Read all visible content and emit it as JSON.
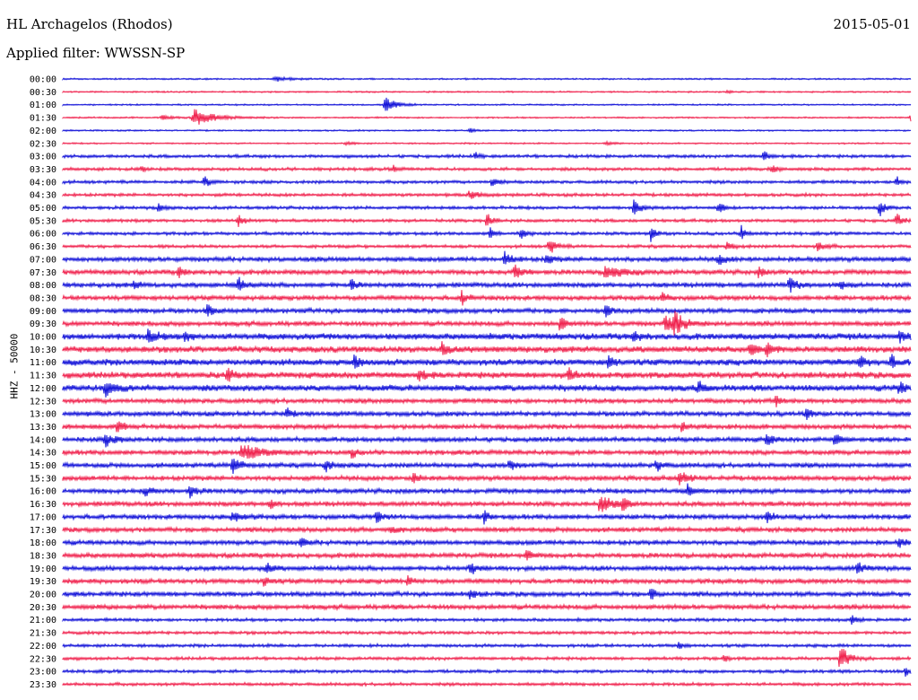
{
  "header": {
    "station": "HL Archagelos (Rhodos)",
    "date": "2015-05-01",
    "filter": "Applied filter: WWSSN-SP",
    "channel": "HHZ - 50000"
  },
  "colors": {
    "even_trace": "#1010d8",
    "odd_trace": "#f0204c"
  },
  "chart_data": {
    "type": "line",
    "title": "HL Archagelos (Rhodos)",
    "subtitle": "Applied filter: WWSSN-SP",
    "ylabel": "HHZ - 50000",
    "xlabel": "",
    "grid": false,
    "row_labels": [
      "00:00",
      "00:30",
      "01:00",
      "01:30",
      "02:00",
      "02:30",
      "03:00",
      "03:30",
      "04:00",
      "04:30",
      "05:00",
      "05:30",
      "06:00",
      "06:30",
      "07:00",
      "07:30",
      "08:00",
      "08:30",
      "09:00",
      "09:30",
      "10:00",
      "10:30",
      "11:00",
      "11:30",
      "12:00",
      "12:30",
      "13:00",
      "13:30",
      "14:00",
      "14:30",
      "15:00",
      "15:30",
      "16:00",
      "16:30",
      "17:00",
      "17:30",
      "18:00",
      "18:30",
      "19:00",
      "19:30",
      "20:00",
      "20:30",
      "21:00",
      "21:30",
      "22:00",
      "22:30",
      "23:00",
      "23:30"
    ],
    "row_duration_minutes": 30,
    "noise_levels": [
      1,
      1,
      1,
      1,
      1,
      1,
      2,
      2,
      2,
      2,
      2,
      2,
      2,
      2,
      3,
      3,
      3,
      3,
      3,
      3,
      4,
      4,
      4,
      4,
      4,
      3,
      3,
      3,
      3,
      3,
      3,
      3,
      3,
      3,
      3,
      3,
      3,
      3,
      3,
      3,
      3,
      3,
      2,
      2,
      2,
      2,
      2,
      2
    ],
    "events": [
      {
        "row": 0,
        "minute": 7.5,
        "amp": 3,
        "dur": 0.8
      },
      {
        "row": 1,
        "minute": 23.5,
        "amp": 2,
        "dur": 0.2
      },
      {
        "row": 2,
        "minute": 11.4,
        "amp": 9,
        "dur": 0.6
      },
      {
        "row": 3,
        "minute": 3.5,
        "amp": 3,
        "dur": 0.6
      },
      {
        "row": 3,
        "minute": 4.6,
        "amp": 10,
        "dur": 1.2
      },
      {
        "row": 3,
        "minute": 30,
        "amp": 8,
        "dur": 0.4
      },
      {
        "row": 4,
        "minute": 14.4,
        "amp": 3,
        "dur": 0.3
      },
      {
        "row": 5,
        "minute": 10,
        "amp": 2,
        "dur": 0.4
      },
      {
        "row": 5,
        "minute": 19.2,
        "amp": 2,
        "dur": 0.4
      },
      {
        "row": 6,
        "minute": 14.6,
        "amp": 5,
        "dur": 0.2
      },
      {
        "row": 6,
        "minute": 24.8,
        "amp": 6,
        "dur": 0.3
      },
      {
        "row": 7,
        "minute": 2.8,
        "amp": 4,
        "dur": 0.2
      },
      {
        "row": 7,
        "minute": 11.7,
        "amp": 4,
        "dur": 0.2
      },
      {
        "row": 7,
        "minute": 25.1,
        "amp": 5,
        "dur": 0.3
      },
      {
        "row": 8,
        "minute": 5,
        "amp": 6,
        "dur": 0.3
      },
      {
        "row": 8,
        "minute": 15.2,
        "amp": 7,
        "dur": 0.3
      },
      {
        "row": 8,
        "minute": 29.5,
        "amp": 6,
        "dur": 0.3
      },
      {
        "row": 9,
        "minute": 14.4,
        "amp": 5,
        "dur": 0.5
      },
      {
        "row": 10,
        "minute": 3.4,
        "amp": 6,
        "dur": 0.3
      },
      {
        "row": 10,
        "minute": 20.2,
        "amp": 8,
        "dur": 0.4
      },
      {
        "row": 10,
        "minute": 23.2,
        "amp": 7,
        "dur": 0.3
      },
      {
        "row": 10,
        "minute": 28.9,
        "amp": 9,
        "dur": 0.3
      },
      {
        "row": 11,
        "minute": 6.2,
        "amp": 6,
        "dur": 0.3
      },
      {
        "row": 11,
        "minute": 15,
        "amp": 9,
        "dur": 0.3
      },
      {
        "row": 11,
        "minute": 29.5,
        "amp": 8,
        "dur": 0.3
      },
      {
        "row": 12,
        "minute": 15.1,
        "amp": 7,
        "dur": 0.3
      },
      {
        "row": 12,
        "minute": 16.2,
        "amp": 6,
        "dur": 0.3
      },
      {
        "row": 12,
        "minute": 20.8,
        "amp": 8,
        "dur": 0.3
      },
      {
        "row": 12,
        "minute": 24,
        "amp": 8,
        "dur": 0.3
      },
      {
        "row": 13,
        "minute": 17.2,
        "amp": 9,
        "dur": 0.4
      },
      {
        "row": 13,
        "minute": 23.5,
        "amp": 6,
        "dur": 0.4
      },
      {
        "row": 13,
        "minute": 26.7,
        "amp": 6,
        "dur": 0.4
      },
      {
        "row": 14,
        "minute": 15.6,
        "amp": 9,
        "dur": 0.4
      },
      {
        "row": 14,
        "minute": 17.1,
        "amp": 7,
        "dur": 0.3
      },
      {
        "row": 14,
        "minute": 23.2,
        "amp": 7,
        "dur": 0.3
      },
      {
        "row": 15,
        "minute": 4.1,
        "amp": 6,
        "dur": 0.3
      },
      {
        "row": 15,
        "minute": 16,
        "amp": 8,
        "dur": 0.4
      },
      {
        "row": 15,
        "minute": 19.2,
        "amp": 8,
        "dur": 0.9
      },
      {
        "row": 15,
        "minute": 24.6,
        "amp": 6,
        "dur": 0.3
      },
      {
        "row": 16,
        "minute": 2.5,
        "amp": 5,
        "dur": 0.3
      },
      {
        "row": 16,
        "minute": 6.2,
        "amp": 9,
        "dur": 0.3
      },
      {
        "row": 16,
        "minute": 10.2,
        "amp": 7,
        "dur": 0.3
      },
      {
        "row": 16,
        "minute": 25.7,
        "amp": 8,
        "dur": 0.4
      },
      {
        "row": 16,
        "minute": 27.5,
        "amp": 6,
        "dur": 0.3
      },
      {
        "row": 17,
        "minute": 14.1,
        "amp": 8,
        "dur": 0.3
      },
      {
        "row": 17,
        "minute": 21.2,
        "amp": 6,
        "dur": 0.3
      },
      {
        "row": 18,
        "minute": 5.1,
        "amp": 7,
        "dur": 0.3
      },
      {
        "row": 18,
        "minute": 19.2,
        "amp": 6,
        "dur": 0.3
      },
      {
        "row": 19,
        "minute": 17.6,
        "amp": 8,
        "dur": 0.3
      },
      {
        "row": 19,
        "minute": 21.3,
        "amp": 9,
        "dur": 0.5
      },
      {
        "row": 19,
        "minute": 21.6,
        "amp": 12,
        "dur": 0.6
      },
      {
        "row": 20,
        "minute": 3,
        "amp": 7,
        "dur": 0.5
      },
      {
        "row": 20,
        "minute": 4.3,
        "amp": 7,
        "dur": 0.3
      },
      {
        "row": 20,
        "minute": 20.2,
        "amp": 6,
        "dur": 0.3
      },
      {
        "row": 20,
        "minute": 29.6,
        "amp": 6,
        "dur": 0.3
      },
      {
        "row": 21,
        "minute": 13.4,
        "amp": 7,
        "dur": 0.3
      },
      {
        "row": 21,
        "minute": 24.3,
        "amp": 8,
        "dur": 0.4
      },
      {
        "row": 21,
        "minute": 24.9,
        "amp": 7,
        "dur": 0.4
      },
      {
        "row": 22,
        "minute": 10.3,
        "amp": 7,
        "dur": 0.3
      },
      {
        "row": 22,
        "minute": 19.3,
        "amp": 8,
        "dur": 0.3
      },
      {
        "row": 22,
        "minute": 28.2,
        "amp": 7,
        "dur": 0.3
      },
      {
        "row": 22,
        "minute": 29.3,
        "amp": 8,
        "dur": 0.3
      },
      {
        "row": 23,
        "minute": 5.8,
        "amp": 8,
        "dur": 0.3
      },
      {
        "row": 23,
        "minute": 12.6,
        "amp": 7,
        "dur": 0.3
      },
      {
        "row": 23,
        "minute": 17.9,
        "amp": 7,
        "dur": 0.3
      },
      {
        "row": 24,
        "minute": 1.5,
        "amp": 8,
        "dur": 0.6
      },
      {
        "row": 24,
        "minute": 22.5,
        "amp": 6,
        "dur": 0.3
      },
      {
        "row": 24,
        "minute": 29.6,
        "amp": 7,
        "dur": 0.3
      },
      {
        "row": 25,
        "minute": 25.2,
        "amp": 6,
        "dur": 0.3
      },
      {
        "row": 26,
        "minute": 7.9,
        "amp": 6,
        "dur": 0.3
      },
      {
        "row": 26,
        "minute": 26.3,
        "amp": 6,
        "dur": 0.3
      },
      {
        "row": 27,
        "minute": 1.9,
        "amp": 7,
        "dur": 0.4
      },
      {
        "row": 27,
        "minute": 21.9,
        "amp": 7,
        "dur": 0.3
      },
      {
        "row": 28,
        "minute": 1.5,
        "amp": 8,
        "dur": 0.5
      },
      {
        "row": 28,
        "minute": 24.9,
        "amp": 8,
        "dur": 0.3
      },
      {
        "row": 28,
        "minute": 27.3,
        "amp": 7,
        "dur": 0.3
      },
      {
        "row": 29,
        "minute": 6.3,
        "amp": 9,
        "dur": 1.1
      },
      {
        "row": 29,
        "minute": 10.2,
        "amp": 6,
        "dur": 0.3
      },
      {
        "row": 30,
        "minute": 6,
        "amp": 9,
        "dur": 0.5
      },
      {
        "row": 30,
        "minute": 9.3,
        "amp": 7,
        "dur": 0.3
      },
      {
        "row": 30,
        "minute": 15.8,
        "amp": 7,
        "dur": 0.3
      },
      {
        "row": 30,
        "minute": 21,
        "amp": 7,
        "dur": 0.3
      },
      {
        "row": 31,
        "minute": 12.4,
        "amp": 7,
        "dur": 0.3
      },
      {
        "row": 31,
        "minute": 21.8,
        "amp": 8,
        "dur": 0.5
      },
      {
        "row": 32,
        "minute": 2.9,
        "amp": 5,
        "dur": 0.4
      },
      {
        "row": 32,
        "minute": 4.5,
        "amp": 7,
        "dur": 0.3
      },
      {
        "row": 32,
        "minute": 22.1,
        "amp": 7,
        "dur": 0.3
      },
      {
        "row": 33,
        "minute": 7.3,
        "amp": 6,
        "dur": 0.3
      },
      {
        "row": 33,
        "minute": 19,
        "amp": 9,
        "dur": 0.8
      },
      {
        "row": 33,
        "minute": 19.8,
        "amp": 7,
        "dur": 0.3
      },
      {
        "row": 34,
        "minute": 6,
        "amp": 6,
        "dur": 0.5
      },
      {
        "row": 34,
        "minute": 11.1,
        "amp": 8,
        "dur": 0.3
      },
      {
        "row": 34,
        "minute": 14.9,
        "amp": 7,
        "dur": 0.3
      },
      {
        "row": 34,
        "minute": 24.9,
        "amp": 8,
        "dur": 0.3
      },
      {
        "row": 35,
        "minute": 11.6,
        "amp": 5,
        "dur": 0.3
      },
      {
        "row": 36,
        "minute": 8.4,
        "amp": 6,
        "dur": 0.3
      },
      {
        "row": 36,
        "minute": 29.6,
        "amp": 5,
        "dur": 0.3
      },
      {
        "row": 37,
        "minute": 16.4,
        "amp": 8,
        "dur": 0.3
      },
      {
        "row": 38,
        "minute": 7.2,
        "amp": 8,
        "dur": 0.3
      },
      {
        "row": 38,
        "minute": 14.4,
        "amp": 9,
        "dur": 0.3
      },
      {
        "row": 38,
        "minute": 28.1,
        "amp": 7,
        "dur": 0.4
      },
      {
        "row": 39,
        "minute": 7.1,
        "amp": 6,
        "dur": 0.3
      },
      {
        "row": 39,
        "minute": 12.2,
        "amp": 5,
        "dur": 0.3
      },
      {
        "row": 40,
        "minute": 14.4,
        "amp": 6,
        "dur": 0.3
      },
      {
        "row": 40,
        "minute": 20.8,
        "amp": 7,
        "dur": 0.3
      },
      {
        "row": 42,
        "minute": 27.9,
        "amp": 5,
        "dur": 0.3
      },
      {
        "row": 44,
        "minute": 21.8,
        "amp": 6,
        "dur": 0.2
      },
      {
        "row": 45,
        "minute": 27.5,
        "amp": 14,
        "dur": 0.5
      },
      {
        "row": 45,
        "minute": 23.4,
        "amp": 5,
        "dur": 0.2
      },
      {
        "row": 46,
        "minute": 29.8,
        "amp": 6,
        "dur": 0.2
      }
    ]
  }
}
